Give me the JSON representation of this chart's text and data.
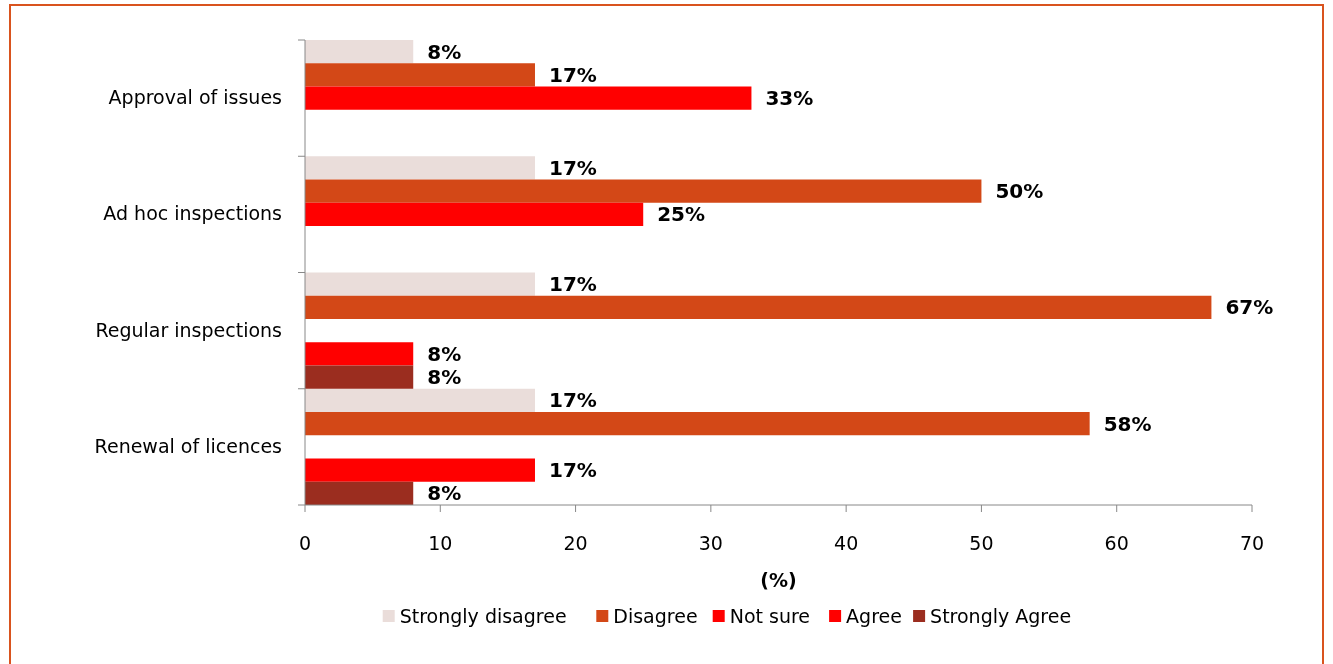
{
  "chart_data": {
    "type": "bar",
    "orientation": "horizontal",
    "categories": [
      "Approval of issues",
      "Ad hoc inspections",
      "Regular inspections",
      "Renewal of licences"
    ],
    "series": [
      {
        "name": "Strongly disagree",
        "color": "#eaddda",
        "values": [
          8,
          17,
          17,
          17
        ],
        "value_labels": [
          "8%",
          "17%",
          "17%",
          "17%"
        ]
      },
      {
        "name": "Disagree",
        "color": "#d34817",
        "values": [
          17,
          50,
          67,
          58
        ],
        "value_labels": [
          "17%",
          "50%",
          "67%",
          "58%"
        ]
      },
      {
        "name": "Not sure",
        "color": "#ff0000",
        "values": [
          33,
          25,
          null,
          null
        ],
        "value_labels": [
          "33%",
          "25%",
          null,
          null
        ]
      },
      {
        "name": "Agree",
        "color": "#ff0000",
        "values": [
          null,
          null,
          8,
          17
        ],
        "value_labels": [
          null,
          null,
          "8%",
          "17%"
        ]
      },
      {
        "name": "Strongly Agree",
        "color": "#9b2d1f",
        "values": [
          null,
          null,
          8,
          8
        ],
        "value_labels": [
          null,
          null,
          "8%",
          "8%"
        ]
      }
    ],
    "xlabel": "(%)",
    "xlim": [
      0,
      70
    ],
    "xticks": [
      0,
      10,
      20,
      30,
      40,
      50,
      60,
      70
    ],
    "grid": false,
    "legend": "bottom"
  }
}
